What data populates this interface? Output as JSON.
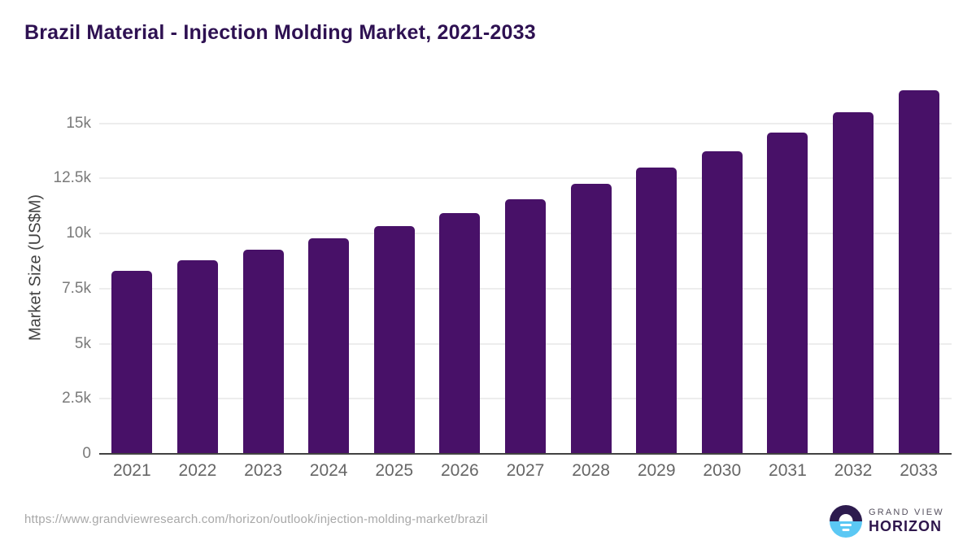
{
  "title": "Brazil Material - Injection Molding Market, 2021-2033",
  "footer": {
    "source_url": "https://www.grandviewresearch.com/horizon/outlook/injection-molding-market/brazil",
    "logo": {
      "line1": "GRAND VIEW",
      "line2": "HORIZON"
    }
  },
  "colors": {
    "bar": "#481168",
    "title": "#2e1152",
    "gridline": "#ededed",
    "axis_line": "#424242",
    "y_tick_label": "#7a7a7a",
    "x_tick_label": "#666666",
    "axis_title": "#424242",
    "source_url": "#a8a8a8",
    "logo_dark": "#2d1b4e",
    "logo_blue": "#5bc8f4"
  },
  "chart_data": {
    "type": "bar",
    "title": "Brazil Material - Injection Molding Market, 2021-2033",
    "categories": [
      "2021",
      "2022",
      "2023",
      "2024",
      "2025",
      "2026",
      "2027",
      "2028",
      "2029",
      "2030",
      "2031",
      "2032",
      "2033"
    ],
    "values": [
      8300,
      8780,
      9250,
      9780,
      10320,
      10910,
      11540,
      12240,
      12980,
      13720,
      14570,
      15490,
      16480
    ],
    "xlabel": "",
    "ylabel": "Market Size (US$M)",
    "ylim": [
      0,
      16900
    ],
    "ytick_values": [
      0,
      2500,
      5000,
      7500,
      10000,
      12500,
      15000
    ],
    "ytick_labels": [
      "0",
      "2.5k",
      "5k",
      "7.5k",
      "10k",
      "12.5k",
      "15k"
    ],
    "grid": true,
    "legend": false,
    "bar_color": "#481168"
  }
}
